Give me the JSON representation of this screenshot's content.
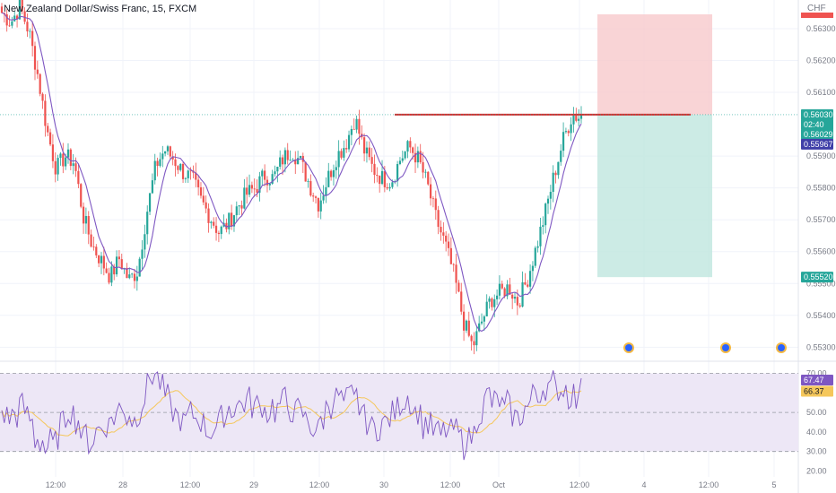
{
  "chart_title": "New Zealand Dollar/Swiss Franc, 15, FXCM",
  "axis_currency": "CHF",
  "colors": {
    "up": "#26a69a",
    "down": "#ef5350",
    "ma": "#7e57c2",
    "rsi": "#7e57c2",
    "rsi_ma": "#f5c75b",
    "resistance": "#d32f2f",
    "stop_zone": "#f8c9cc",
    "target_zone": "#bfe6df",
    "rsi_band": "#ede7f6"
  },
  "chart_data": [
    {
      "type": "candlestick",
      "x_ticks": [
        "12:00",
        "28",
        "12:00",
        "29",
        "12:00",
        "30",
        "12:00",
        "Oct",
        "12:00",
        "4",
        "12:00",
        "5"
      ],
      "y_ticks": [
        "0.56300",
        "0.56200",
        "0.56100",
        "0.55900",
        "0.55800",
        "0.55700",
        "0.55600",
        "0.55500",
        "0.55400",
        "0.55300"
      ],
      "ylim": [
        0.5527,
        0.5639
      ],
      "close_path": [
        0.5635,
        0.5632,
        0.5637,
        0.5629,
        0.5615,
        0.5598,
        0.5586,
        0.559,
        0.5588,
        0.5571,
        0.5562,
        0.5557,
        0.5552,
        0.5558,
        0.5551,
        0.5554,
        0.5572,
        0.5587,
        0.5592,
        0.5589,
        0.5585,
        0.5583,
        0.5576,
        0.5571,
        0.5566,
        0.5569,
        0.5574,
        0.5578,
        0.558,
        0.5584,
        0.5583,
        0.5589,
        0.5592,
        0.5588,
        0.5581,
        0.5575,
        0.5583,
        0.559,
        0.5594,
        0.5602,
        0.5592,
        0.5586,
        0.5583,
        0.5582,
        0.5589,
        0.5593,
        0.5589,
        0.5581,
        0.557,
        0.5562,
        0.5552,
        0.5538,
        0.553,
        0.5538,
        0.5545,
        0.5547,
        0.5549,
        0.5544,
        0.5551,
        0.5561,
        0.5572,
        0.5584,
        0.5595,
        0.5603,
        0.5602
      ],
      "resistance_level": "0.56030",
      "price_tags": {
        "resistance": "0.56030",
        "countdown": "02:40",
        "last": "0.56029",
        "ma": "0.55967",
        "target": "0.55520"
      },
      "event_markers": 3
    },
    {
      "type": "line",
      "indicator": "RSI",
      "y_ticks": [
        "70.00",
        "50.00",
        "40.00",
        "30.00",
        "20.00"
      ],
      "levels": [
        70,
        50,
        30
      ],
      "ylim": [
        17,
        73
      ],
      "rsi_value": "67.47",
      "ma_value": "66.37"
    }
  ]
}
